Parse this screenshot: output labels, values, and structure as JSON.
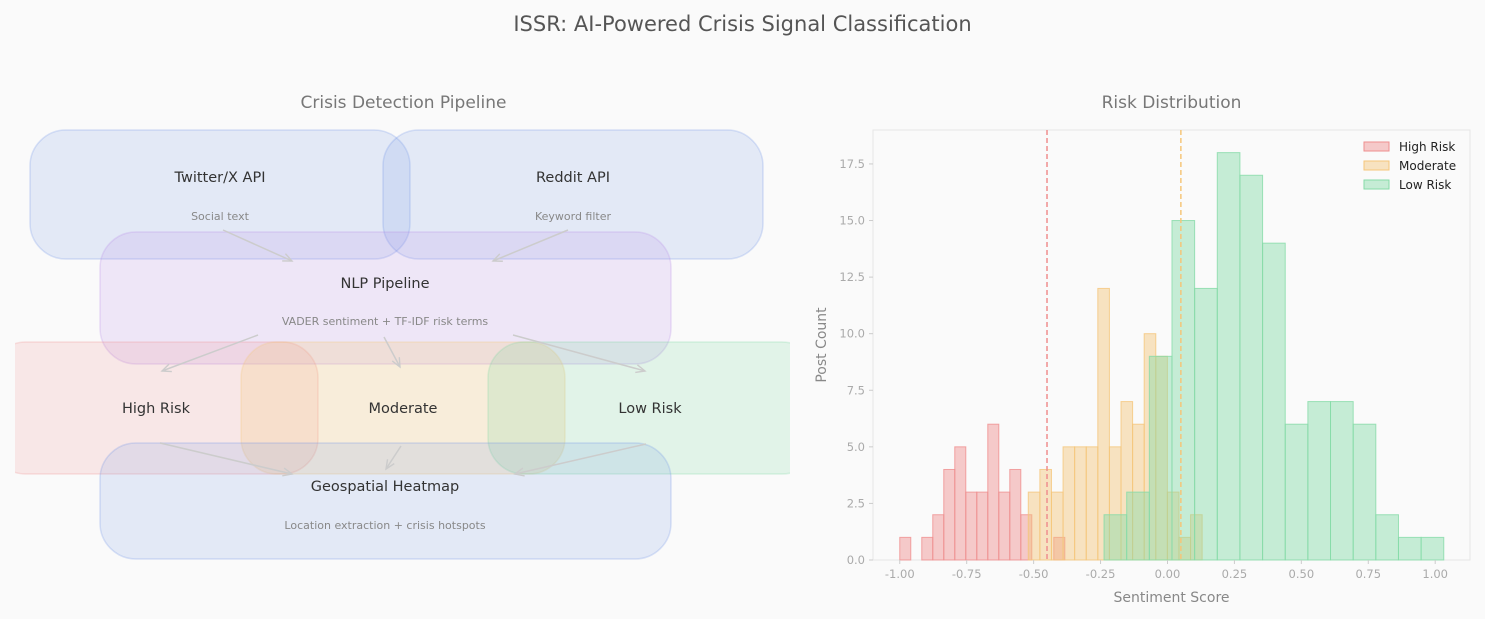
{
  "title": "ISSR: AI-Powered Crisis Signal Classification",
  "pipeline": {
    "title": "Crisis Detection Pipeline",
    "nodes": [
      {
        "id": "twitter",
        "label": "Twitter/X API",
        "sub": "Social text",
        "color": "#6f95e8"
      },
      {
        "id": "reddit",
        "label": "Reddit API",
        "sub": "Keyword filter",
        "color": "#6f95e8"
      },
      {
        "id": "nlp",
        "label": "NLP Pipeline",
        "sub": "VADER sentiment + TF-IDF risk terms",
        "color": "#b98de8"
      },
      {
        "id": "high",
        "label": "High Risk",
        "sub": "",
        "color": "#ef8f8f"
      },
      {
        "id": "moderate",
        "label": "Moderate",
        "sub": "",
        "color": "#f5c67a"
      },
      {
        "id": "low",
        "label": "Low Risk",
        "sub": "",
        "color": "#7fd6a2"
      },
      {
        "id": "geo",
        "label": "Geospatial Heatmap",
        "sub": "Location extraction + crisis hotspots",
        "color": "#6f95e8"
      }
    ],
    "edges": [
      [
        "twitter",
        "nlp"
      ],
      [
        "reddit",
        "nlp"
      ],
      [
        "nlp",
        "high"
      ],
      [
        "nlp",
        "moderate"
      ],
      [
        "nlp",
        "low"
      ],
      [
        "high",
        "geo"
      ],
      [
        "moderate",
        "geo"
      ],
      [
        "low",
        "geo"
      ]
    ]
  },
  "chart_data": {
    "type": "bar",
    "title": "Risk Distribution",
    "xlabel": "Sentiment Score",
    "ylabel": "Post Count",
    "xlim": [
      -1.1,
      1.13
    ],
    "ylim": [
      0,
      19
    ],
    "xticks": [
      "-1.00",
      "-0.75",
      "-0.50",
      "-0.25",
      "0.00",
      "0.25",
      "0.50",
      "0.75",
      "1.00"
    ],
    "yticks": [
      "0.0",
      "2.5",
      "5.0",
      "7.5",
      "10.0",
      "12.5",
      "15.0",
      "17.5"
    ],
    "legend_position": "top-right",
    "grid": false,
    "series": [
      {
        "name": "High Risk",
        "color": "#ef8f8f",
        "bin_start": -1.0,
        "bin_width": 0.0411,
        "values": [
          1,
          0,
          1,
          2,
          4,
          5,
          3,
          3,
          6,
          3,
          4,
          2,
          0,
          0,
          1
        ]
      },
      {
        "name": "Moderate",
        "color": "#f5c67a",
        "bin_start": -0.52,
        "bin_width": 0.0433,
        "values": [
          3,
          4,
          3,
          5,
          5,
          5,
          12,
          5,
          7,
          6,
          10,
          9,
          3,
          1,
          2
        ]
      },
      {
        "name": "Low Risk",
        "color": "#86dba8",
        "bin_start": -0.237,
        "bin_width": 0.0846,
        "values": [
          2,
          3,
          9,
          15,
          12,
          18,
          17,
          14,
          6,
          7,
          7,
          6,
          2,
          1,
          1
        ]
      }
    ],
    "threshold_lines": [
      {
        "x": -0.45,
        "color": "#ef8f8f"
      },
      {
        "x": 0.05,
        "color": "#f5c67a"
      }
    ]
  }
}
